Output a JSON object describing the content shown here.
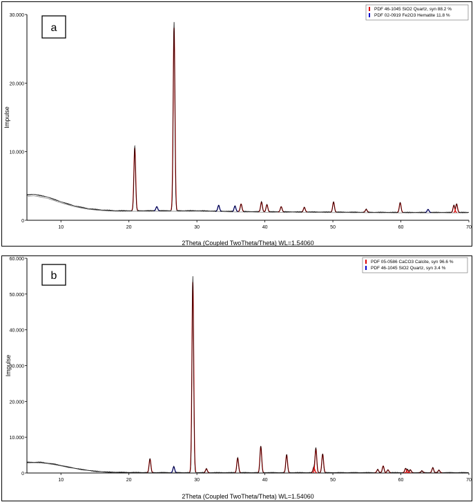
{
  "chart_data": [
    {
      "type": "line",
      "panel_label": "a",
      "xlabel": "2Theta (Coupled TwoTheta/Theta) WL=1.54060",
      "ylabel": "Impulse",
      "xlim": [
        5,
        70
      ],
      "ylim": [
        0,
        30000
      ],
      "x_ticks": [
        10,
        20,
        30,
        40,
        50,
        60,
        70
      ],
      "x_tick_labels": [
        "10",
        "20",
        "30",
        "40",
        "50",
        "60",
        "70"
      ],
      "y_ticks": [
        0,
        10000,
        20000,
        30000
      ],
      "y_tick_labels": [
        "0",
        "10.000",
        "20.000",
        "30.000"
      ],
      "grid": false,
      "legend_position": "top-right",
      "legend": [
        {
          "label": "PDF 46-1045 SiO2 Quartz, syn  88.2 %",
          "color": "#dd0000"
        },
        {
          "label": "PDF 02-0919 Fe2O3 Hematite  11.8 %",
          "color": "#0000cc"
        }
      ],
      "baseline": [
        [
          5,
          3700
        ],
        [
          6,
          3800
        ],
        [
          8,
          3400
        ],
        [
          10,
          2700
        ],
        [
          12,
          2100
        ],
        [
          14,
          1700
        ],
        [
          16,
          1500
        ],
        [
          18,
          1400
        ],
        [
          20,
          1400
        ],
        [
          25,
          1400
        ],
        [
          30,
          1400
        ],
        [
          35,
          1300
        ],
        [
          40,
          1250
        ],
        [
          50,
          1200
        ],
        [
          60,
          1150
        ],
        [
          70,
          1150
        ]
      ],
      "peaks": [
        {
          "x": 20.86,
          "y": 10800,
          "phase": "SiO2 Quartz"
        },
        {
          "x": 26.64,
          "y": 28900,
          "phase": "SiO2 Quartz"
        },
        {
          "x": 24.1,
          "y": 2000,
          "phase": "Fe2O3 Hematite"
        },
        {
          "x": 33.2,
          "y": 2200,
          "phase": "Fe2O3 Hematite"
        },
        {
          "x": 35.6,
          "y": 2100,
          "phase": "Fe2O3 Hematite"
        },
        {
          "x": 36.5,
          "y": 2400,
          "phase": "SiO2 Quartz"
        },
        {
          "x": 39.5,
          "y": 2700,
          "phase": "SiO2 Quartz"
        },
        {
          "x": 40.3,
          "y": 2300,
          "phase": "SiO2 Quartz"
        },
        {
          "x": 42.4,
          "y": 2000,
          "phase": "SiO2 Quartz"
        },
        {
          "x": 45.8,
          "y": 1900,
          "phase": "SiO2 Quartz"
        },
        {
          "x": 50.1,
          "y": 2700,
          "phase": "SiO2 Quartz"
        },
        {
          "x": 54.9,
          "y": 1600,
          "phase": "SiO2 Quartz"
        },
        {
          "x": 59.9,
          "y": 2600,
          "phase": "SiO2 Quartz"
        },
        {
          "x": 64.0,
          "y": 1600,
          "phase": "Fe2O3 Hematite"
        },
        {
          "x": 67.8,
          "y": 2200,
          "phase": "SiO2 Quartz"
        },
        {
          "x": 68.2,
          "y": 2400,
          "phase": "SiO2 Quartz"
        }
      ]
    },
    {
      "type": "line",
      "panel_label": "b",
      "xlabel": "2Theta (Coupled TwoTheta/Theta) WL=1.54060",
      "ylabel": "Impulse",
      "xlim": [
        5,
        70
      ],
      "ylim": [
        0,
        60000
      ],
      "x_ticks": [
        10,
        20,
        30,
        40,
        50,
        60,
        70
      ],
      "x_tick_labels": [
        "10",
        "20",
        "30",
        "40",
        "50",
        "60",
        "70"
      ],
      "y_ticks": [
        0,
        10000,
        20000,
        30000,
        40000,
        50000,
        60000
      ],
      "y_tick_labels": [
        "0",
        "10.000",
        "20.000",
        "30.000",
        "40.000",
        "50.000",
        "60.000"
      ],
      "grid": false,
      "legend_position": "top-right",
      "legend": [
        {
          "label": "PDF 05-0586 CaCO3 Calcite, syn  96.6 %",
          "color": "#dd0000"
        },
        {
          "label": "PDF 46-1045 SiO2 Quartz, syn  3.4 %",
          "color": "#0000cc"
        }
      ],
      "baseline": [
        [
          5,
          3000
        ],
        [
          7,
          3000
        ],
        [
          9,
          2500
        ],
        [
          11,
          1700
        ],
        [
          13,
          1000
        ],
        [
          15,
          500
        ],
        [
          17,
          250
        ],
        [
          20,
          150
        ],
        [
          30,
          100
        ],
        [
          70,
          100
        ]
      ],
      "peaks": [
        {
          "x": 23.1,
          "y": 4000,
          "phase": "CaCO3 Calcite"
        },
        {
          "x": 26.6,
          "y": 1800,
          "phase": "SiO2 Quartz"
        },
        {
          "x": 29.4,
          "y": 55000,
          "phase": "CaCO3 Calcite"
        },
        {
          "x": 31.4,
          "y": 1200,
          "phase": "CaCO3 Calcite"
        },
        {
          "x": 36.0,
          "y": 4300,
          "phase": "CaCO3 Calcite"
        },
        {
          "x": 39.4,
          "y": 7600,
          "phase": "CaCO3 Calcite"
        },
        {
          "x": 43.2,
          "y": 5200,
          "phase": "CaCO3 Calcite"
        },
        {
          "x": 47.2,
          "y": 1600,
          "phase": "CaCO3 Calcite"
        },
        {
          "x": 47.5,
          "y": 7000,
          "phase": "CaCO3 Calcite"
        },
        {
          "x": 48.5,
          "y": 5400,
          "phase": "CaCO3 Calcite"
        },
        {
          "x": 56.6,
          "y": 1000,
          "phase": "CaCO3 Calcite"
        },
        {
          "x": 57.4,
          "y": 2000,
          "phase": "CaCO3 Calcite"
        },
        {
          "x": 58.1,
          "y": 900,
          "phase": "CaCO3 Calcite"
        },
        {
          "x": 60.7,
          "y": 1300,
          "phase": "CaCO3 Calcite"
        },
        {
          "x": 61.0,
          "y": 900,
          "phase": "CaCO3 Calcite"
        },
        {
          "x": 61.4,
          "y": 900,
          "phase": "CaCO3 Calcite"
        },
        {
          "x": 63.1,
          "y": 600,
          "phase": "CaCO3 Calcite"
        },
        {
          "x": 64.7,
          "y": 1500,
          "phase": "CaCO3 Calcite"
        },
        {
          "x": 65.6,
          "y": 800,
          "phase": "CaCO3 Calcite"
        }
      ]
    }
  ]
}
